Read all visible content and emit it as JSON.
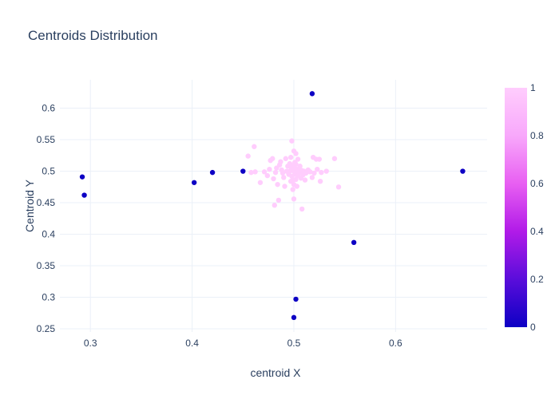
{
  "chart_data": {
    "type": "scatter",
    "title": "Centroids Distribution",
    "xlabel": "centroid X",
    "ylabel": "Centroid Y",
    "xlim": [
      0.27,
      0.69
    ],
    "ylim": [
      0.245,
      0.645
    ],
    "x_ticks": [
      0.3,
      0.4,
      0.5,
      0.6
    ],
    "x_tick_labels": [
      "0.3",
      "0.4",
      "0.5",
      "0.6"
    ],
    "y_ticks": [
      0.25,
      0.3,
      0.35,
      0.4,
      0.45,
      0.5,
      0.55,
      0.6
    ],
    "y_tick_labels": [
      "0.25",
      "0.3",
      "0.35",
      "0.4",
      "0.45",
      "0.5",
      "0.55",
      "0.6"
    ],
    "grid": true,
    "colorscale": {
      "min": 0,
      "max": 1,
      "ticks": [
        0,
        0.2,
        0.4,
        0.6,
        0.8,
        1
      ],
      "tick_labels": [
        "0",
        "0.2",
        "0.4",
        "0.6",
        "0.8",
        "1"
      ],
      "colors": [
        "#0d00c4",
        "#5a0ddb",
        "#b11be8",
        "#e85ff2",
        "#f8a8fb",
        "#ffcdfd"
      ]
    },
    "series": [
      {
        "color_value": 0,
        "points": [
          [
            0.292,
            0.491
          ],
          [
            0.294,
            0.462
          ],
          [
            0.402,
            0.482
          ],
          [
            0.42,
            0.498
          ],
          [
            0.45,
            0.5
          ],
          [
            0.518,
            0.623
          ],
          [
            0.559,
            0.387
          ],
          [
            0.666,
            0.5
          ],
          [
            0.502,
            0.297
          ],
          [
            0.5,
            0.268
          ]
        ]
      },
      {
        "color_value": 1,
        "points": [
          [
            0.455,
            0.524
          ],
          [
            0.458,
            0.498
          ],
          [
            0.461,
            0.539
          ],
          [
            0.462,
            0.499
          ],
          [
            0.467,
            0.482
          ],
          [
            0.471,
            0.499
          ],
          [
            0.474,
            0.493
          ],
          [
            0.476,
            0.503
          ],
          [
            0.477,
            0.517
          ],
          [
            0.479,
            0.52
          ],
          [
            0.48,
            0.488
          ],
          [
            0.481,
            0.446
          ],
          [
            0.482,
            0.498
          ],
          [
            0.483,
            0.505
          ],
          [
            0.484,
            0.479
          ],
          [
            0.485,
            0.454
          ],
          [
            0.486,
            0.51
          ],
          [
            0.487,
            0.515
          ],
          [
            0.488,
            0.502
          ],
          [
            0.489,
            0.497
          ],
          [
            0.49,
            0.49
          ],
          [
            0.491,
            0.476
          ],
          [
            0.492,
            0.52
          ],
          [
            0.493,
            0.5
          ],
          [
            0.494,
            0.508
          ],
          [
            0.495,
            0.495
          ],
          [
            0.496,
            0.512
          ],
          [
            0.497,
            0.484
          ],
          [
            0.497,
            0.522
          ],
          [
            0.498,
            0.548
          ],
          [
            0.498,
            0.503
          ],
          [
            0.499,
            0.471
          ],
          [
            0.499,
            0.509
          ],
          [
            0.5,
            0.532
          ],
          [
            0.5,
            0.5
          ],
          [
            0.5,
            0.479
          ],
          [
            0.5,
            0.456
          ],
          [
            0.501,
            0.495
          ],
          [
            0.501,
            0.514
          ],
          [
            0.502,
            0.487
          ],
          [
            0.502,
            0.528
          ],
          [
            0.503,
            0.503
          ],
          [
            0.503,
            0.476
          ],
          [
            0.504,
            0.519
          ],
          [
            0.505,
            0.497
          ],
          [
            0.506,
            0.508
          ],
          [
            0.507,
            0.489
          ],
          [
            0.508,
            0.44
          ],
          [
            0.508,
            0.501
          ],
          [
            0.509,
            0.494
          ],
          [
            0.51,
            0.5
          ],
          [
            0.511,
            0.486
          ],
          [
            0.512,
            0.497
          ],
          [
            0.514,
            0.502
          ],
          [
            0.516,
            0.499
          ],
          [
            0.518,
            0.49
          ],
          [
            0.519,
            0.522
          ],
          [
            0.52,
            0.497
          ],
          [
            0.522,
            0.519
          ],
          [
            0.523,
            0.503
          ],
          [
            0.525,
            0.519
          ],
          [
            0.526,
            0.484
          ],
          [
            0.527,
            0.498
          ],
          [
            0.532,
            0.5
          ],
          [
            0.54,
            0.52
          ],
          [
            0.544,
            0.475
          ],
          [
            0.496,
            0.5
          ],
          [
            0.503,
            0.498
          ],
          [
            0.498,
            0.492
          ],
          [
            0.501,
            0.505
          ],
          [
            0.504,
            0.493
          ],
          [
            0.497,
            0.507
          ],
          [
            0.502,
            0.511
          ],
          [
            0.499,
            0.486
          ],
          [
            0.506,
            0.502
          ]
        ]
      }
    ]
  }
}
